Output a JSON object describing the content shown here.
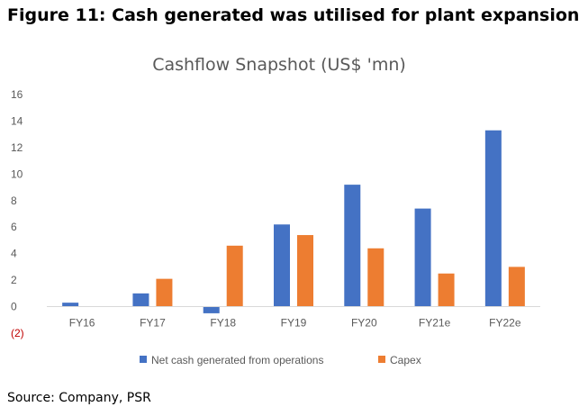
{
  "figure": {
    "title": "Figure 11: Cash generated was utilised for plant expansion",
    "source": "Source: Company, PSR"
  },
  "chart_data": {
    "type": "bar",
    "title": "Cashflow Snapshot (US$ 'mn)",
    "xlabel": "",
    "ylabel": "",
    "categories": [
      "FY16",
      "FY17",
      "FY18",
      "FY19",
      "FY20",
      "FY21e",
      "FY22e"
    ],
    "series": [
      {
        "name": "Net cash generated from operations",
        "color": "#4472c4",
        "values": [
          0.3,
          1.0,
          -0.5,
          6.2,
          9.2,
          7.4,
          13.3
        ]
      },
      {
        "name": "Capex",
        "color": "#ed7d31",
        "values": [
          0,
          2.1,
          4.6,
          5.4,
          4.4,
          2.5,
          3.0
        ]
      }
    ],
    "ylim": [
      -2,
      16
    ],
    "yticks": [
      16,
      14,
      12,
      10,
      8,
      6,
      4,
      2,
      0,
      -2
    ],
    "ytick_labels": [
      "16",
      "14",
      "12",
      "10",
      "8",
      "6",
      "4",
      "2",
      "0",
      "(2)"
    ],
    "negative_tick_color": "#c00000",
    "grid": false,
    "legend_position": "bottom"
  }
}
